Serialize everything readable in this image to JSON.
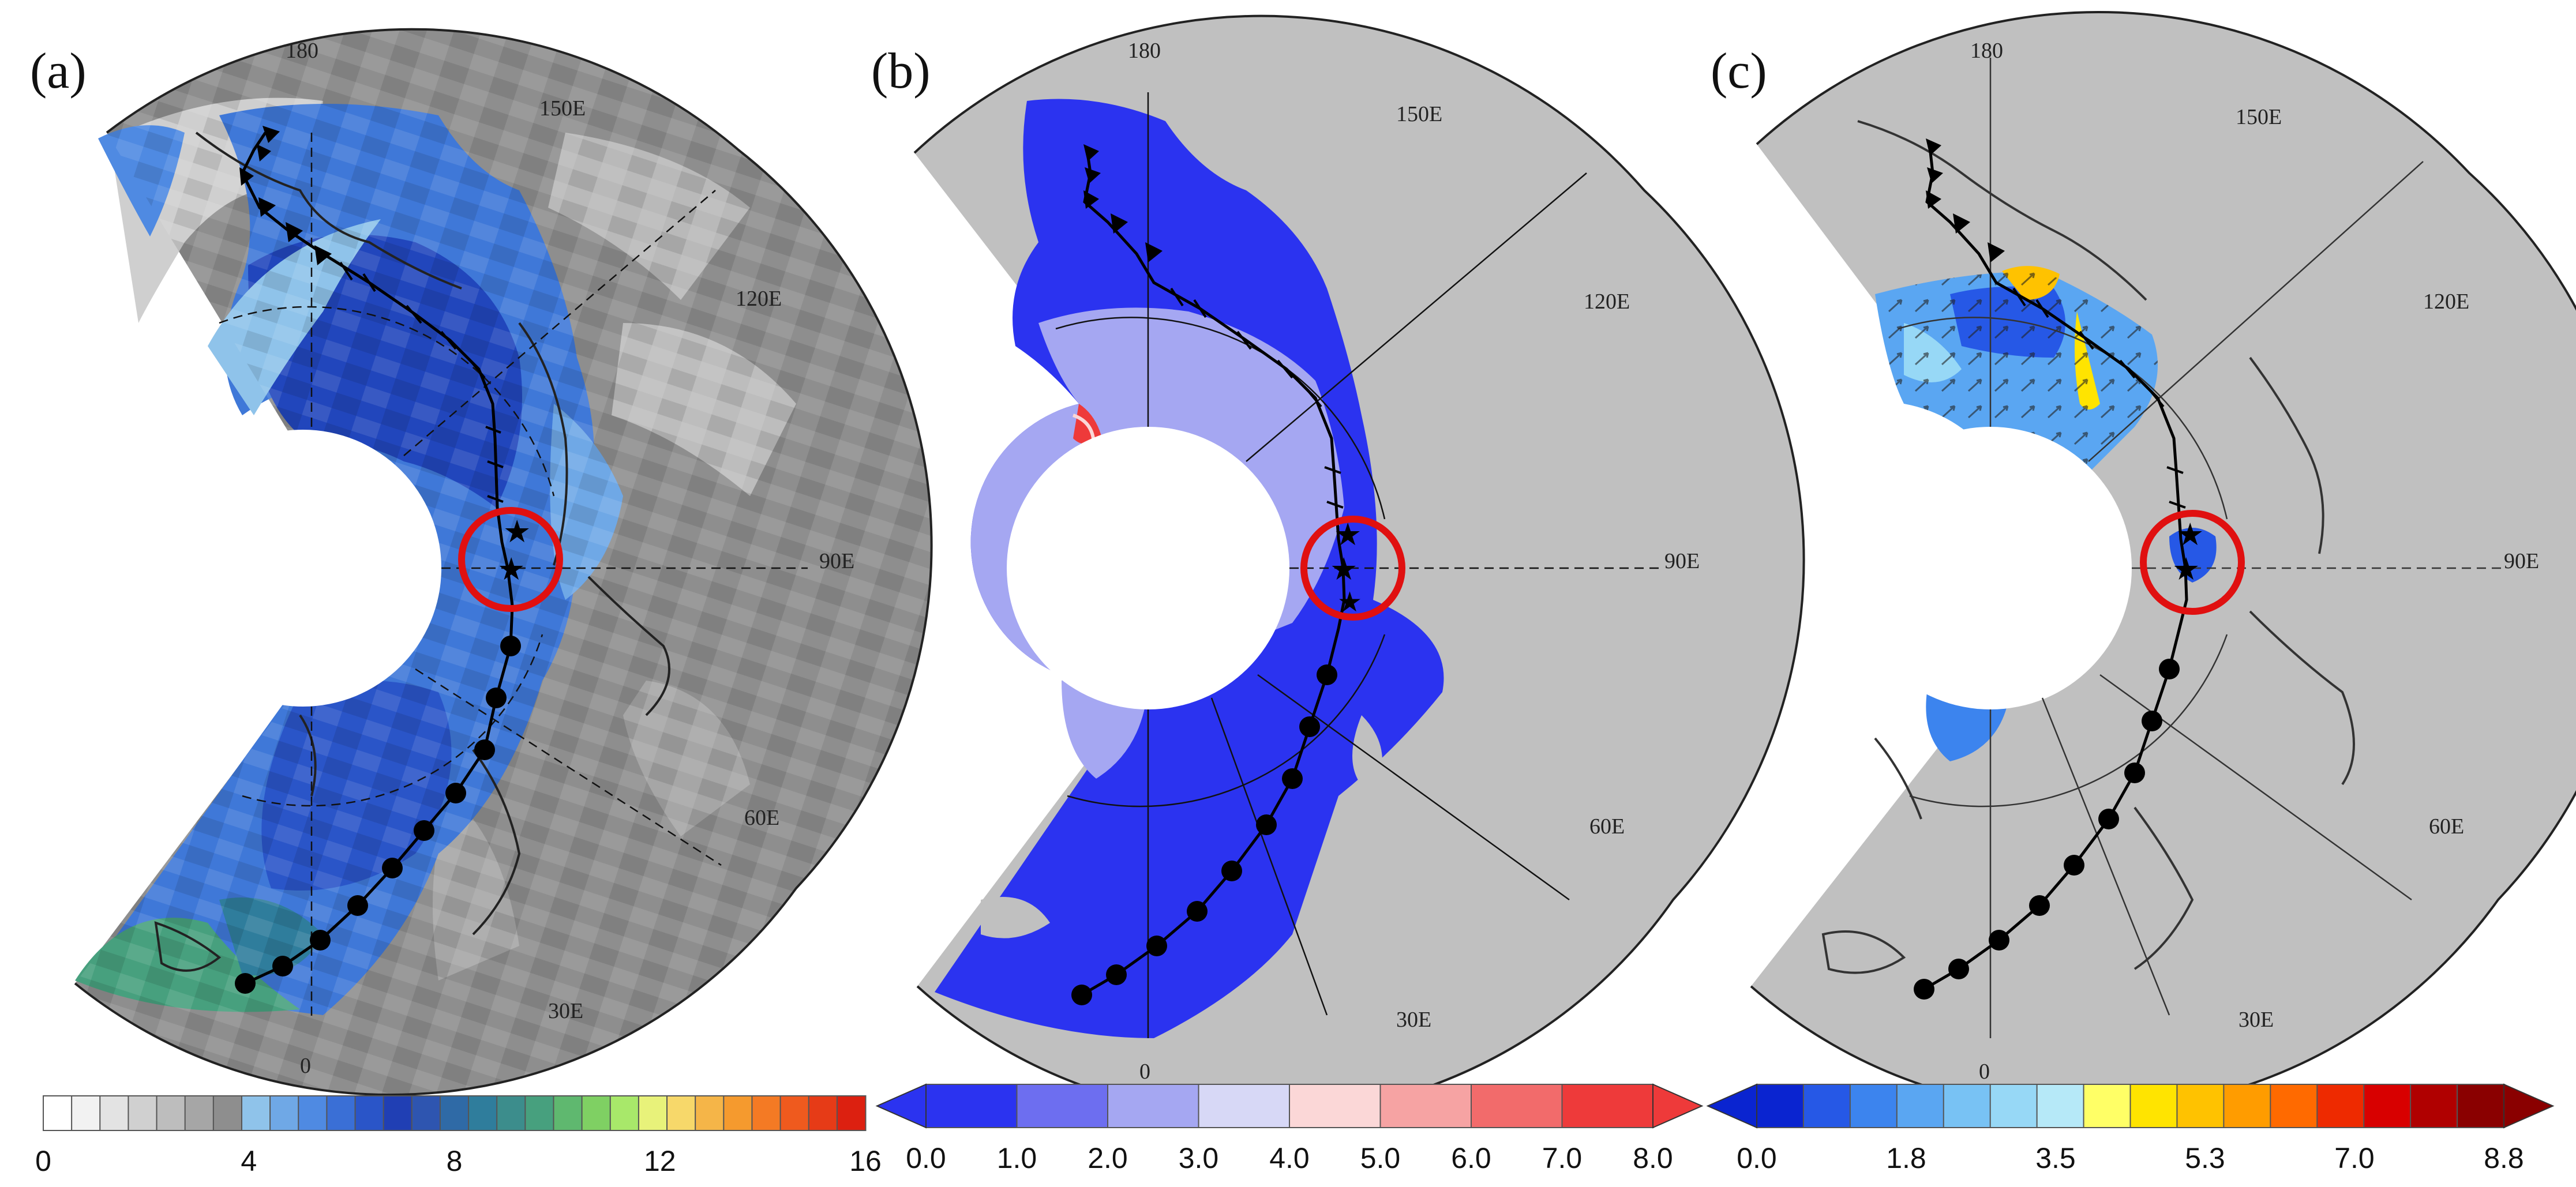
{
  "panels": [
    {
      "id": "a",
      "label": "(a)",
      "lon_labels": [
        "180",
        "150E",
        "120E",
        "90E",
        "60E",
        "30E",
        "0"
      ],
      "colorbar": {
        "ticks": [
          "0",
          "4",
          "8",
          "12",
          "16"
        ],
        "colors": [
          "#ffffff",
          "#f2f2f2",
          "#e3e3e3",
          "#d0d0d0",
          "#bdbdbd",
          "#a6a6a6",
          "#8e8e8e",
          "#8fc3ea",
          "#6fa8e6",
          "#4f8ae2",
          "#3a6fd6",
          "#2a55c8",
          "#203fb4",
          "#2e55b0",
          "#2f6aa6",
          "#2f7d9c",
          "#3c8d8c",
          "#47a07e",
          "#5fb86f",
          "#7fd063",
          "#a8e86a",
          "#e8f27a",
          "#f7d86a",
          "#f5b548",
          "#f59a2e",
          "#f47a24",
          "#ef5a1e",
          "#e63b17",
          "#dc2010"
        ],
        "arrows": false
      }
    },
    {
      "id": "b",
      "label": "(b)",
      "lon_labels": [
        "180",
        "150E",
        "120E",
        "90E",
        "60E",
        "30E",
        "0"
      ],
      "colorbar": {
        "ticks": [
          "0.0",
          "1.0",
          "2.0",
          "3.0",
          "4.0",
          "5.0",
          "6.0",
          "7.0",
          "8.0"
        ],
        "colors": [
          "#2b33f0",
          "#6d6ef0",
          "#a5a7f2",
          "#d7d8f6",
          "#fbd7d7",
          "#f6a3a3",
          "#f26b6b",
          "#ee3a3a"
        ],
        "arrows": true,
        "left_arrow": "#2b33f0",
        "right_arrow": "#ee3a3a"
      }
    },
    {
      "id": "c",
      "label": "(c)",
      "lon_labels": [
        "180",
        "150E",
        "120E",
        "90E",
        "60E",
        "30E",
        "0"
      ],
      "colorbar": {
        "ticks": [
          "0.0",
          "1.8",
          "3.5",
          "5.3",
          "7.0",
          "8.8"
        ],
        "colors": [
          "#0a24d0",
          "#2658e6",
          "#3c84ee",
          "#5aa6f2",
          "#78c2f4",
          "#97d8f6",
          "#b6e9f8",
          "#ffff66",
          "#ffe400",
          "#ffc200",
          "#ff9c00",
          "#ff6a00",
          "#ee2a00",
          "#d80000",
          "#b00000",
          "#8a0000"
        ],
        "arrows": true,
        "left_arrow": "#0a24d0",
        "right_arrow": "#8a0000"
      }
    }
  ]
}
